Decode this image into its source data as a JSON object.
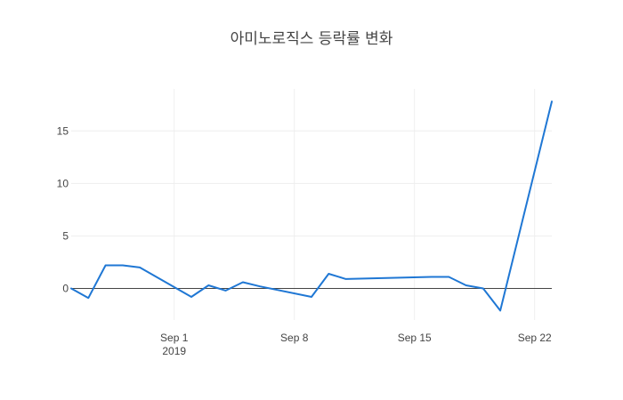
{
  "chart_data": {
    "type": "line",
    "title": "아미노로직스 등락률 변화",
    "xlabel": "",
    "ylabel": "",
    "xlim": [
      "2019-08-26",
      "2019-09-23"
    ],
    "ylim": [
      -3,
      19
    ],
    "grid": true,
    "x_ticks": [
      {
        "date": "2019-09-01",
        "label": "Sep 1",
        "sublabel": "2019"
      },
      {
        "date": "2019-09-08",
        "label": "Sep 8",
        "sublabel": ""
      },
      {
        "date": "2019-09-15",
        "label": "Sep 15",
        "sublabel": ""
      },
      {
        "date": "2019-09-22",
        "label": "Sep 22",
        "sublabel": ""
      }
    ],
    "y_ticks": [
      0,
      5,
      10,
      15
    ],
    "series": [
      {
        "color": "#1f77d4",
        "x": [
          "2019-08-26",
          "2019-08-27",
          "2019-08-28",
          "2019-08-29",
          "2019-08-30",
          "2019-09-02",
          "2019-09-03",
          "2019-09-04",
          "2019-09-05",
          "2019-09-06",
          "2019-09-09",
          "2019-09-10",
          "2019-09-11",
          "2019-09-16",
          "2019-09-17",
          "2019-09-18",
          "2019-09-19",
          "2019-09-20",
          "2019-09-23"
        ],
        "values": [
          0.0,
          -0.9,
          2.2,
          2.2,
          2.0,
          -0.8,
          0.3,
          -0.2,
          0.6,
          0.2,
          -0.8,
          1.4,
          0.9,
          1.1,
          1.1,
          0.3,
          0.0,
          -2.1,
          17.8
        ]
      }
    ]
  }
}
